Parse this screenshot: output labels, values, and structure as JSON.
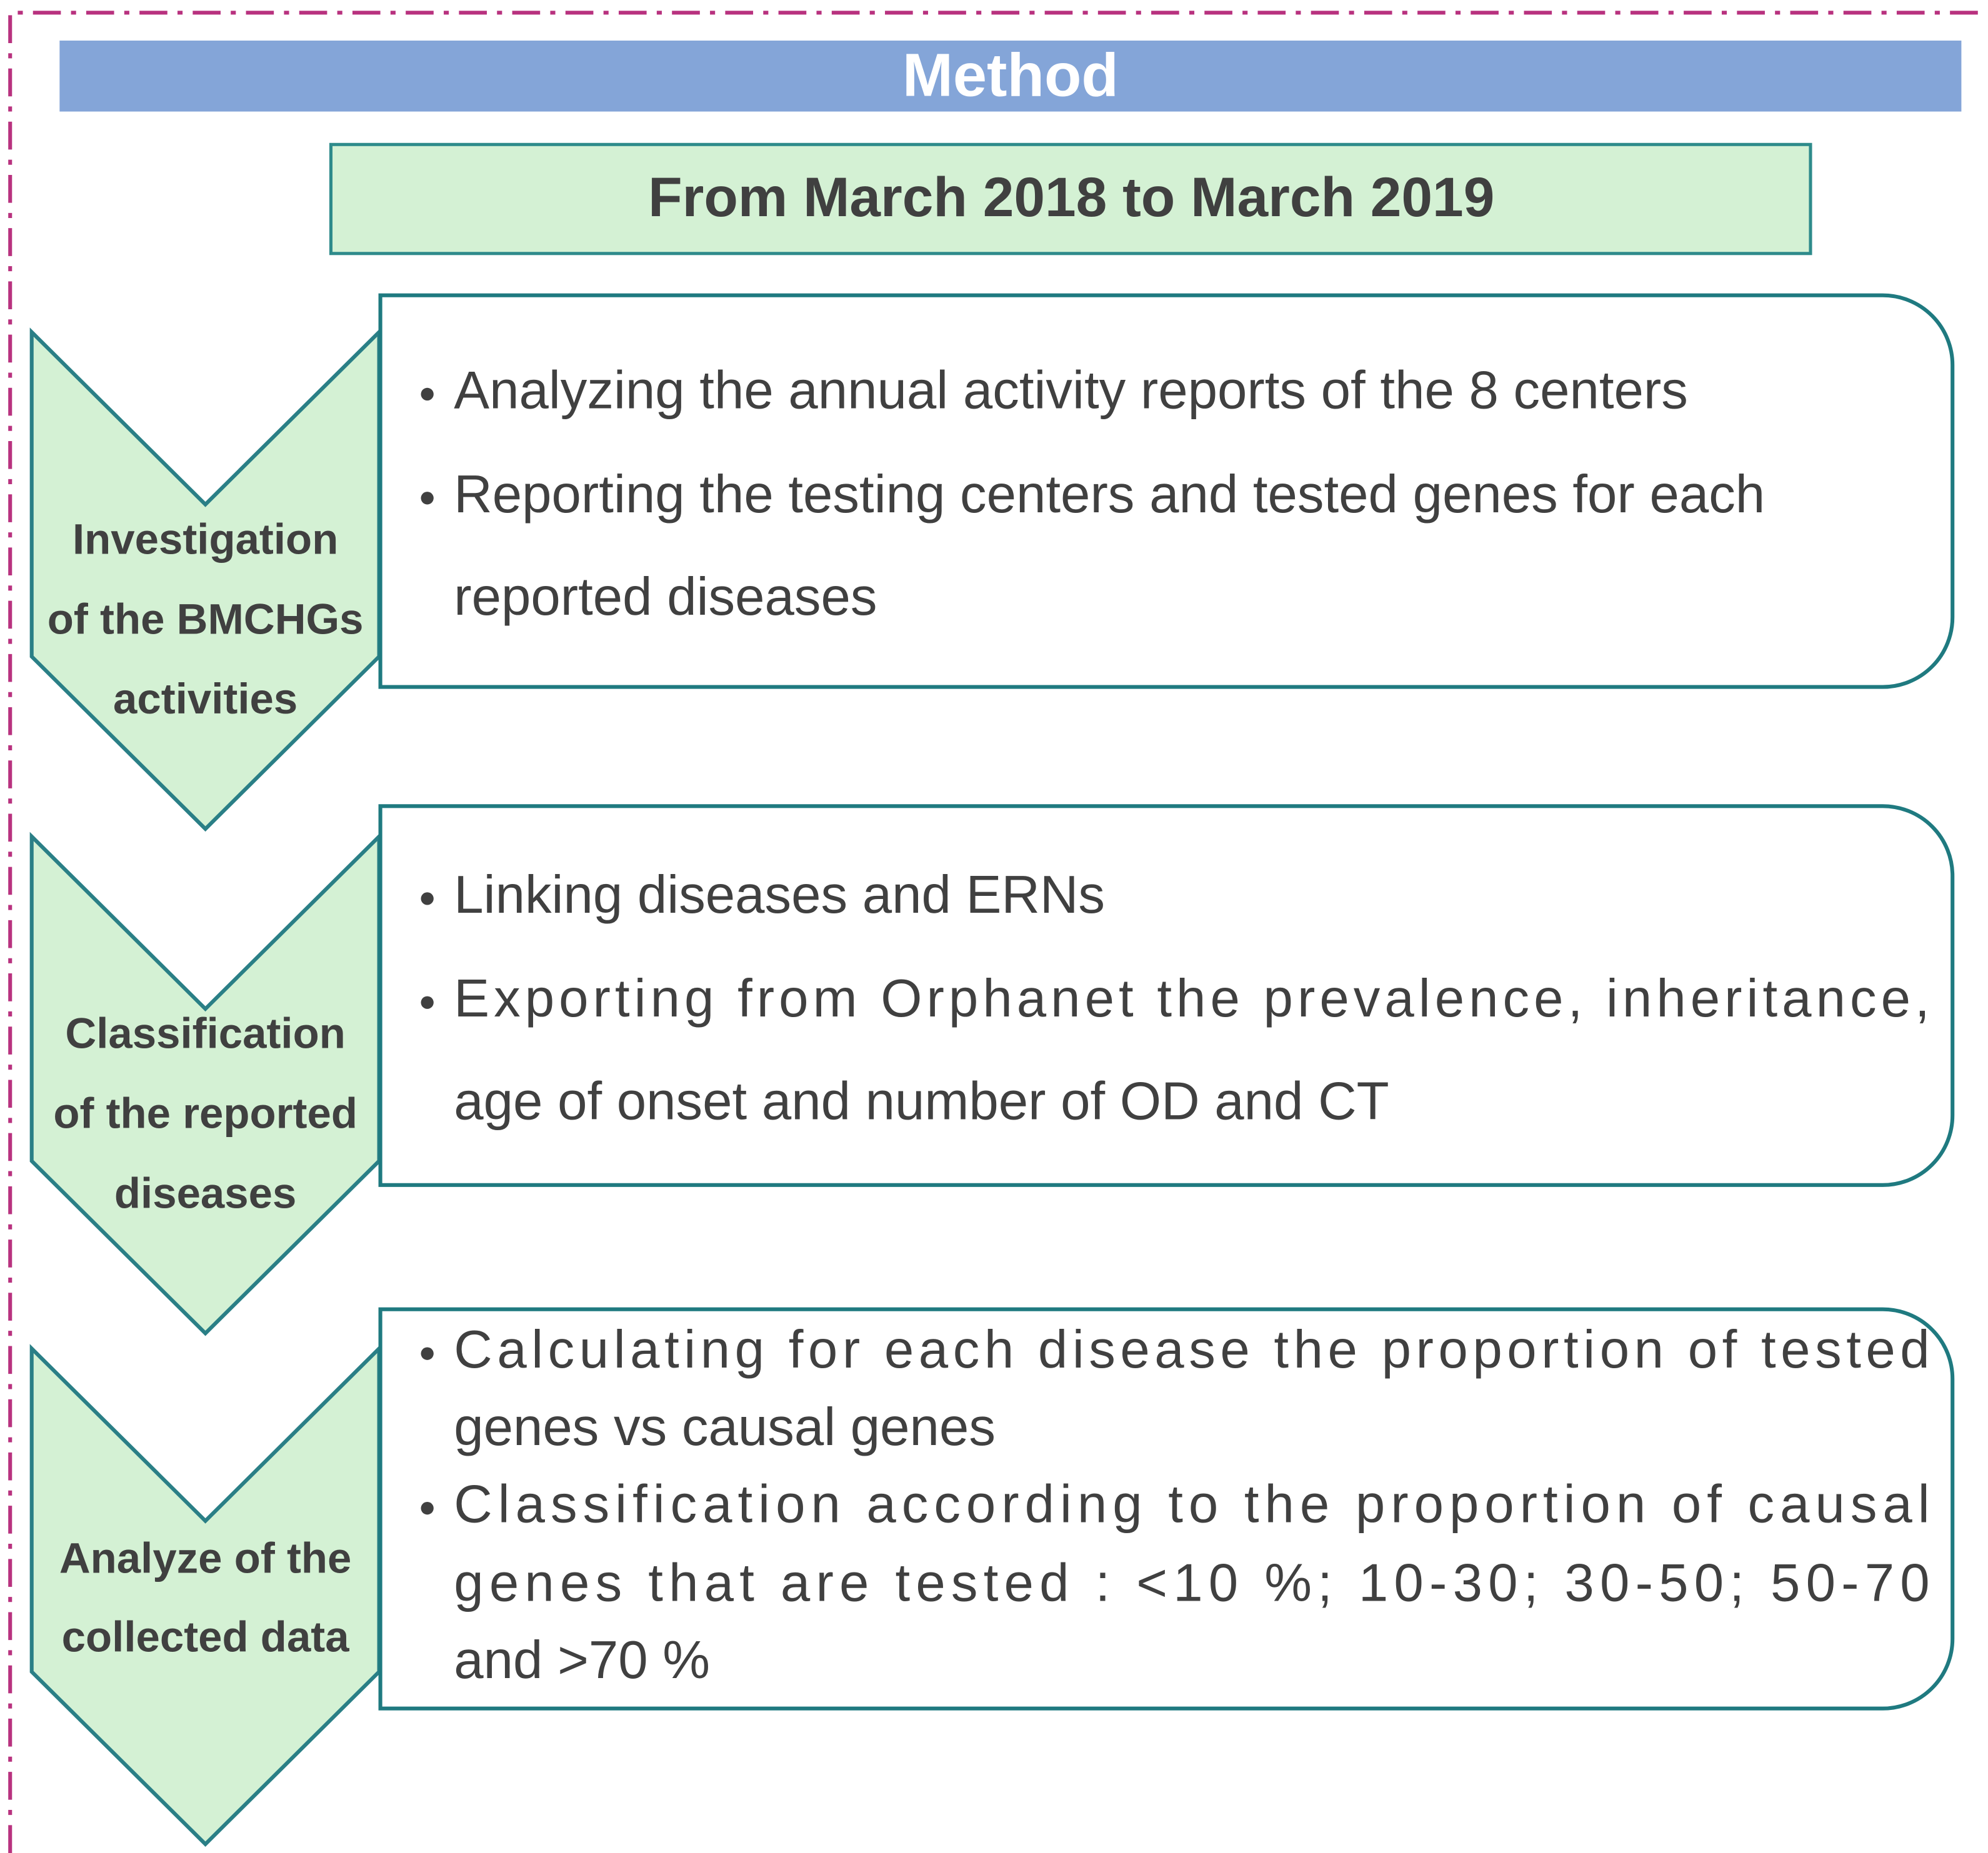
{
  "header": {
    "title": "Method",
    "period": "From March 2018 to March 2019"
  },
  "steps": [
    {
      "label": [
        "Investigation",
        "of the BMCHGs",
        "activities"
      ],
      "bullets": [
        [
          "Analyzing the annual activity reports of the 8 centers"
        ],
        [
          "Reporting the testing centers and tested genes for each",
          "reported diseases"
        ]
      ]
    },
    {
      "label": [
        "Classification",
        "of the reported",
        "diseases"
      ],
      "bullets": [
        [
          "Linking diseases and ERNs"
        ],
        [
          "Exporting from Orphanet the prevalence, inheritance,",
          "age of onset and number of OD and CT"
        ]
      ]
    },
    {
      "label": [
        "Analyze of the",
        "collected data"
      ],
      "bullets": [
        [
          "Calculating for each disease the proportion of tested",
          "genes vs causal genes"
        ],
        [
          "Classification according to the proportion of causal",
          "genes that are tested  : <10 %; 10-30; 30-50; 50-70",
          "and >70 %"
        ]
      ]
    }
  ]
}
